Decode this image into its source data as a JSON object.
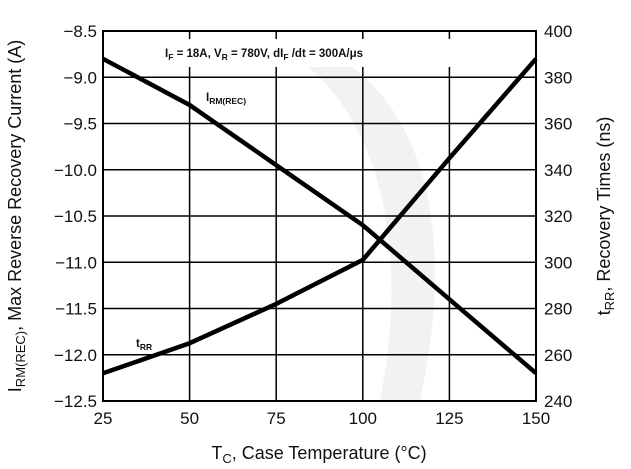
{
  "chart_data": {
    "type": "line",
    "x": [
      25,
      50,
      75,
      100,
      125,
      150
    ],
    "xlim": [
      25,
      150
    ],
    "xticks": [
      "25",
      "50",
      "75",
      "100",
      "125",
      "150"
    ],
    "xlabel": {
      "main": "T",
      "sub": "C",
      "rest": ", Case Temperature (°C)"
    },
    "ylim_left": [
      -12.5,
      -8.5
    ],
    "yticks_left": [
      "-8.5",
      "-9.0",
      "-9.5",
      "-10.0",
      "-10.5",
      "-11.0",
      "-11.5",
      "-12.0",
      "-12.5"
    ],
    "ylabel_left": {
      "main": "I",
      "sub": "RM(REC)",
      "rest": ", Max Reverse Recovery Current (A)"
    },
    "ylim_right": [
      240,
      400
    ],
    "yticks_right": [
      "400",
      "380",
      "360",
      "340",
      "320",
      "300",
      "280",
      "260",
      "240"
    ],
    "ylabel_right": {
      "main": "t",
      "sub": "RR",
      "rest": ", Recovery Times (ns)"
    },
    "grid": true,
    "series": [
      {
        "name_main": "I",
        "name_sub": "RM(REC)",
        "axis": "left",
        "values": [
          -8.8,
          -9.3,
          -9.95,
          -10.6,
          -11.4,
          -12.2
        ]
      },
      {
        "name_main": "t",
        "name_sub": "RR",
        "axis": "right",
        "values": [
          252,
          265,
          282,
          301,
          345,
          388
        ]
      }
    ],
    "annotation": {
      "p1": "I",
      "s1": "F",
      "p2": " = 18A, V",
      "s2": "R",
      "p3": " = 780V, dI",
      "s3": "F",
      "p4": " /dt = 300A/μs"
    }
  }
}
